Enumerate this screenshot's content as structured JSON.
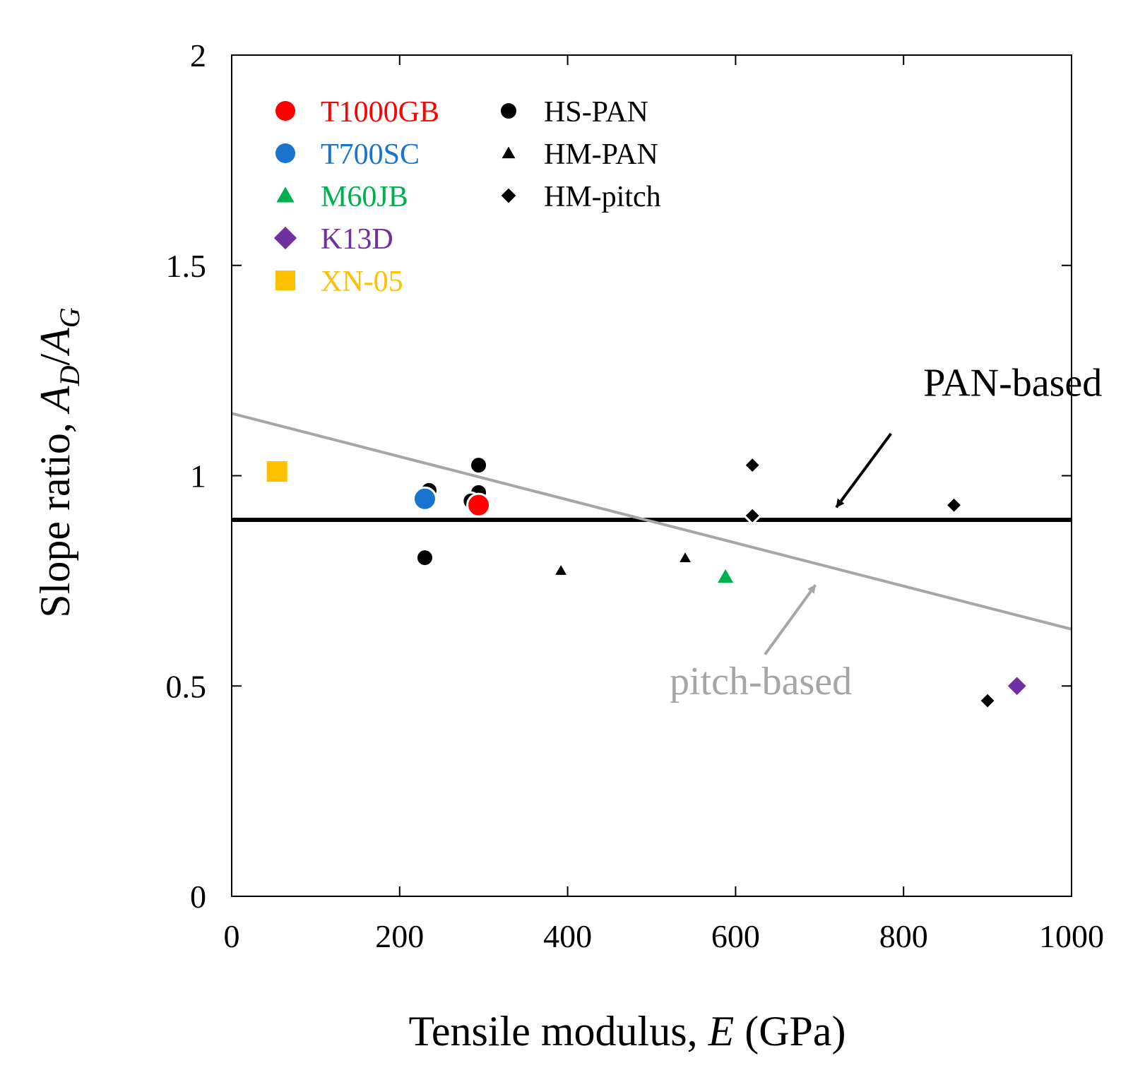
{
  "chart_data": {
    "type": "scatter",
    "xlabel_prefix": "Tensile modulus, ",
    "xlabel_var": "E",
    "xlabel_suffix": " (GPa)",
    "ylabel_prefix": "Slope ratio, ",
    "ylabel_a": "A",
    "ylabel_sub_d": "D",
    "ylabel_slash": "/",
    "ylabel_sub_g": "G",
    "xlim": [
      0,
      1000
    ],
    "ylim": [
      0,
      2
    ],
    "xticks": [
      0,
      200,
      400,
      600,
      800,
      1000
    ],
    "yticks": [
      0,
      0.5,
      1,
      1.5,
      2
    ],
    "ytick_labels": [
      "0",
      "0.5",
      "1",
      "1.5",
      "2"
    ],
    "series": [
      {
        "name": "T1000GB",
        "color": "#ff0000",
        "marker": "circle",
        "points": [
          [
            294,
            0.93
          ]
        ]
      },
      {
        "name": "T700SC",
        "color": "#1874cd",
        "marker": "circle",
        "points": [
          [
            230,
            0.945
          ]
        ]
      },
      {
        "name": "M60JB",
        "color": "#00b050",
        "marker": "triangle",
        "points": [
          [
            588,
            0.76
          ]
        ]
      },
      {
        "name": "K13D",
        "color": "#7030a0",
        "marker": "diamond",
        "points": [
          [
            935,
            0.5
          ]
        ]
      },
      {
        "name": "XN-05",
        "color": "#ffc000",
        "marker": "square",
        "points": [
          [
            54,
            1.01
          ]
        ]
      },
      {
        "name": "HS-PAN",
        "color": "#000000",
        "marker": "circle",
        "points": [
          [
            235,
            0.965
          ],
          [
            294,
            1.025
          ],
          [
            294,
            0.96
          ],
          [
            285,
            0.94
          ],
          [
            230,
            0.805
          ]
        ]
      },
      {
        "name": "HM-PAN",
        "color": "#000000",
        "marker": "triangle",
        "points": [
          [
            392,
            0.775
          ],
          [
            540,
            0.805
          ]
        ]
      },
      {
        "name": "HM-pitch",
        "color": "#000000",
        "marker": "diamond",
        "points": [
          [
            620,
            1.025
          ],
          [
            620,
            0.905
          ],
          [
            860,
            0.93
          ],
          [
            900,
            0.465
          ]
        ]
      }
    ],
    "fit_lines": [
      {
        "name": "PAN-based",
        "color": "#000000",
        "x": [
          0,
          1000
        ],
        "y": [
          0.895,
          0.895
        ]
      },
      {
        "name": "pitch-based",
        "color": "#a6a6a6",
        "x": [
          0,
          1000
        ],
        "y": [
          1.148,
          0.635
        ]
      }
    ],
    "annotations": [
      {
        "text": "PAN-based",
        "color": "#000000",
        "text_pos": [
          930,
          1.19
        ],
        "arrow_from": [
          785,
          1.1
        ],
        "arrow_to": [
          720,
          0.925
        ]
      },
      {
        "text": "pitch-based",
        "color": "#a6a6a6",
        "text_pos": [
          630,
          0.48
        ],
        "arrow_from": [
          635,
          0.575
        ],
        "arrow_to": [
          695,
          0.74
        ]
      }
    ],
    "legend_position": "top-left",
    "grid": false
  }
}
